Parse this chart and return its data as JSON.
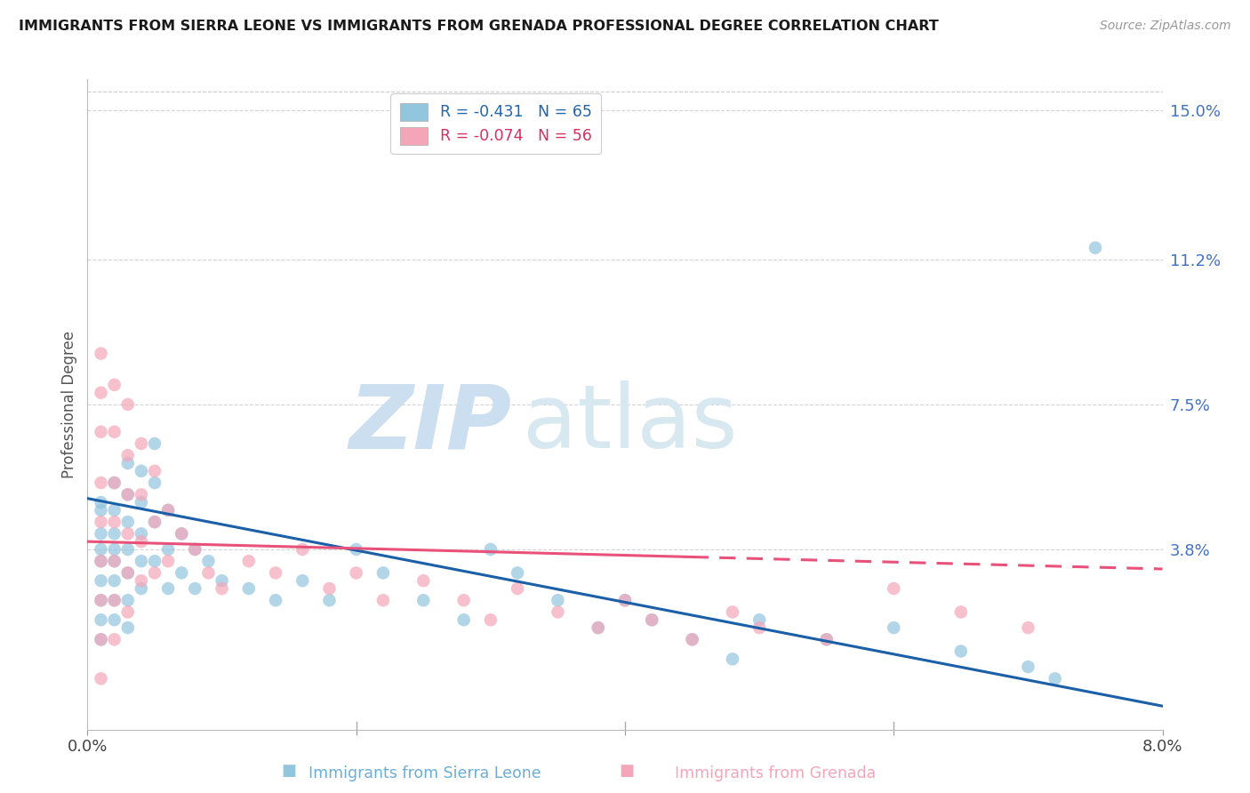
{
  "title": "IMMIGRANTS FROM SIERRA LEONE VS IMMIGRANTS FROM GRENADA PROFESSIONAL DEGREE CORRELATION CHART",
  "source": "Source: ZipAtlas.com",
  "legend_label_blue": "Immigrants from Sierra Leone",
  "legend_label_pink": "Immigrants from Grenada",
  "r_blue": -0.431,
  "n_blue": 65,
  "r_pink": -0.074,
  "n_pink": 56,
  "x_min": 0.0,
  "x_max": 0.08,
  "y_min": -0.008,
  "y_max": 0.158,
  "color_blue": "#92c5de",
  "color_pink": "#f4a6b8",
  "trend_color_blue": "#1a5fa8",
  "trend_color_pink": "#e8517a",
  "watermark_zip_color": "#ccdff0",
  "watermark_atlas_color": "#d8e8f0",
  "background_color": "#ffffff",
  "grid_color": "#d0d0d0",
  "ylabel": "Professional Degree",
  "y_tick_vals": [
    0.038,
    0.075,
    0.112,
    0.15
  ],
  "y_tick_labels": [
    "3.8%",
    "7.5%",
    "11.2%",
    "15.0%"
  ],
  "x_tick_vals": [
    0.0,
    0.02,
    0.04,
    0.06,
    0.08
  ],
  "x_tick_labels": [
    "0.0%",
    "",
    "",
    "",
    "8.0%"
  ],
  "blue_trend_x0": 0.0,
  "blue_trend_y0": 0.051,
  "blue_trend_x1": 0.08,
  "blue_trend_y1": -0.002,
  "pink_trend_x0": 0.0,
  "pink_trend_y0": 0.04,
  "pink_trend_x1": 0.08,
  "pink_trend_y1": 0.033,
  "pink_trend_dash_x0": 0.045,
  "pink_trend_dash_y0": 0.0365,
  "scatter_blue_x": [
    0.001,
    0.001,
    0.001,
    0.001,
    0.001,
    0.001,
    0.001,
    0.001,
    0.001,
    0.002,
    0.002,
    0.002,
    0.002,
    0.002,
    0.002,
    0.002,
    0.002,
    0.003,
    0.003,
    0.003,
    0.003,
    0.003,
    0.003,
    0.003,
    0.004,
    0.004,
    0.004,
    0.004,
    0.004,
    0.005,
    0.005,
    0.005,
    0.005,
    0.006,
    0.006,
    0.006,
    0.007,
    0.007,
    0.008,
    0.008,
    0.009,
    0.01,
    0.012,
    0.014,
    0.016,
    0.018,
    0.02,
    0.022,
    0.025,
    0.028,
    0.03,
    0.032,
    0.035,
    0.038,
    0.04,
    0.042,
    0.045,
    0.048,
    0.05,
    0.055,
    0.06,
    0.065,
    0.07,
    0.072,
    0.075
  ],
  "scatter_blue_y": [
    0.05,
    0.042,
    0.038,
    0.035,
    0.03,
    0.025,
    0.02,
    0.015,
    0.048,
    0.055,
    0.048,
    0.042,
    0.038,
    0.035,
    0.03,
    0.025,
    0.02,
    0.06,
    0.052,
    0.045,
    0.038,
    0.032,
    0.025,
    0.018,
    0.058,
    0.05,
    0.042,
    0.035,
    0.028,
    0.065,
    0.055,
    0.045,
    0.035,
    0.048,
    0.038,
    0.028,
    0.042,
    0.032,
    0.038,
    0.028,
    0.035,
    0.03,
    0.028,
    0.025,
    0.03,
    0.025,
    0.038,
    0.032,
    0.025,
    0.02,
    0.038,
    0.032,
    0.025,
    0.018,
    0.025,
    0.02,
    0.015,
    0.01,
    0.02,
    0.015,
    0.018,
    0.012,
    0.008,
    0.005,
    0.115
  ],
  "scatter_pink_x": [
    0.001,
    0.001,
    0.001,
    0.001,
    0.001,
    0.001,
    0.001,
    0.001,
    0.001,
    0.002,
    0.002,
    0.002,
    0.002,
    0.002,
    0.002,
    0.002,
    0.003,
    0.003,
    0.003,
    0.003,
    0.003,
    0.003,
    0.004,
    0.004,
    0.004,
    0.004,
    0.005,
    0.005,
    0.005,
    0.006,
    0.006,
    0.007,
    0.008,
    0.009,
    0.01,
    0.012,
    0.014,
    0.016,
    0.018,
    0.02,
    0.022,
    0.025,
    0.028,
    0.03,
    0.032,
    0.035,
    0.038,
    0.04,
    0.042,
    0.045,
    0.048,
    0.05,
    0.055,
    0.06,
    0.065,
    0.07
  ],
  "scatter_pink_y": [
    0.088,
    0.078,
    0.068,
    0.055,
    0.045,
    0.035,
    0.025,
    0.015,
    0.005,
    0.08,
    0.068,
    0.055,
    0.045,
    0.035,
    0.025,
    0.015,
    0.075,
    0.062,
    0.052,
    0.042,
    0.032,
    0.022,
    0.065,
    0.052,
    0.04,
    0.03,
    0.058,
    0.045,
    0.032,
    0.048,
    0.035,
    0.042,
    0.038,
    0.032,
    0.028,
    0.035,
    0.032,
    0.038,
    0.028,
    0.032,
    0.025,
    0.03,
    0.025,
    0.02,
    0.028,
    0.022,
    0.018,
    0.025,
    0.02,
    0.015,
    0.022,
    0.018,
    0.015,
    0.028,
    0.022,
    0.018
  ]
}
